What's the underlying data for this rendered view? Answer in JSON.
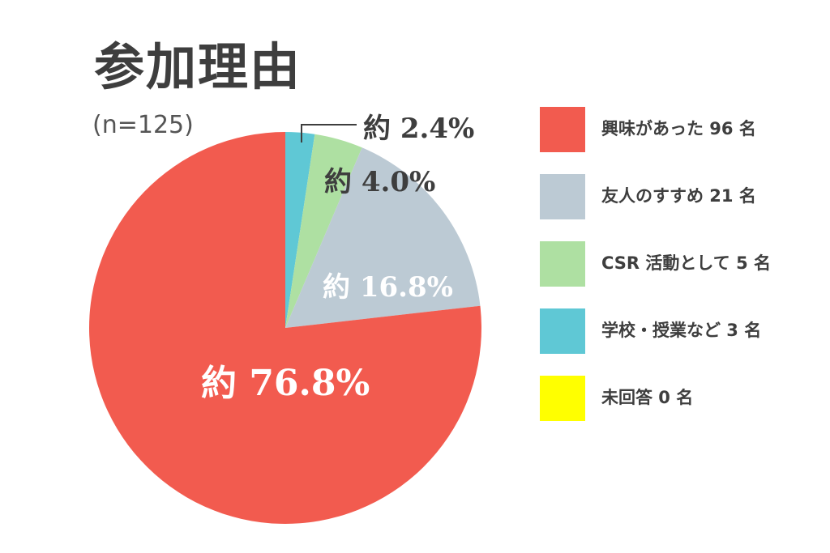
{
  "chart_data": {
    "type": "pie",
    "title": "参加理由",
    "subtitle": "(n=125)",
    "slices": [
      {
        "name": "興味があった",
        "count": 96,
        "percent": 76.8,
        "label": "約 76.8%",
        "color": "#f25b4f",
        "legend": "興味があった 96 名",
        "label_color": "#ffffff"
      },
      {
        "name": "友人のすすめ",
        "count": 21,
        "percent": 16.8,
        "label": "約 16.8%",
        "color": "#bccad4",
        "legend": "友人のすすめ 21 名",
        "label_color": "#ffffff"
      },
      {
        "name": "CSR 活動として",
        "count": 5,
        "percent": 4.0,
        "label": "約 4.0%",
        "color": "#aee0a2",
        "legend": "CSR 活動として 5 名",
        "label_color": "#3e3e3e"
      },
      {
        "name": "学校・授業など",
        "count": 3,
        "percent": 2.4,
        "label": "約 2.4%",
        "color": "#5fc8d5",
        "legend": "学校・授業など 3 名",
        "label_color": "#3e3e3e"
      },
      {
        "name": "未回答",
        "count": 0,
        "percent": 0,
        "label": "",
        "color": "#ffff00",
        "legend": "未回答 0 名",
        "label_color": "#3e3e3e"
      }
    ],
    "legend_position": "right"
  }
}
